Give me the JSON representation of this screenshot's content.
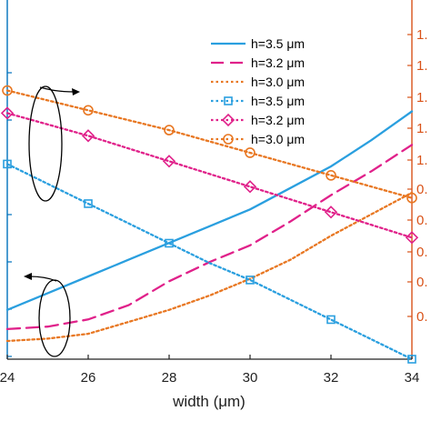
{
  "chart_data": {
    "type": "line",
    "xlabel": "width (μm)",
    "xlim": [
      24,
      34
    ],
    "x_ticks": [
      "24",
      "26",
      "28",
      "30",
      "32",
      "34"
    ],
    "left_axis_color": "#0072bd",
    "right_axis_color": "#d95319",
    "right_tick_labels": [
      "1.",
      "1.",
      "1.",
      "1.",
      "1.",
      "0.",
      "0.",
      "0.",
      "0.",
      "0."
    ],
    "legend_labels": [
      "h=3.5 μm",
      "h=3.2 μm",
      "h=3.0 μm",
      "h=3.5 μm",
      "h=3.2 μm",
      "h=3.0 μm"
    ],
    "legend_placement": "top-right",
    "grid": false,
    "series": [
      {
        "axis": "left",
        "style": "solid",
        "color": "#2a9fdf",
        "x": [
          24,
          25,
          26,
          27,
          28,
          29,
          30,
          31,
          32,
          33,
          34
        ],
        "y": [
          0.13,
          0.2,
          0.27,
          0.34,
          0.41,
          0.48,
          0.55,
          0.64,
          0.73,
          0.84,
          0.96
        ]
      },
      {
        "axis": "left",
        "style": "dashed",
        "color": "#e0218a",
        "x": [
          24,
          25,
          26,
          27,
          28,
          29,
          30,
          31,
          32,
          33,
          34
        ],
        "y": [
          0.05,
          0.06,
          0.09,
          0.15,
          0.25,
          0.33,
          0.4,
          0.5,
          0.61,
          0.71,
          0.82
        ]
      },
      {
        "axis": "left",
        "style": "dotted",
        "color": "#e87722",
        "x": [
          24,
          25,
          26,
          27,
          28,
          29,
          30,
          31,
          32,
          33,
          34
        ],
        "y": [
          0.0,
          0.01,
          0.03,
          0.08,
          0.13,
          0.19,
          0.26,
          0.34,
          0.44,
          0.53,
          0.62
        ]
      },
      {
        "axis": "right",
        "style": "dotted",
        "marker": "square",
        "color": "#2a9fdf",
        "x": [
          24,
          25,
          26,
          27,
          28,
          29,
          30,
          31,
          32,
          33,
          34
        ],
        "y": [
          0.83,
          0.76,
          0.69,
          0.62,
          0.55,
          0.48,
          0.42,
          0.35,
          0.28,
          0.21,
          0.14
        ]
      },
      {
        "axis": "right",
        "style": "dotted",
        "marker": "diamond",
        "color": "#e0218a",
        "x": [
          24,
          26,
          28,
          30,
          32,
          34
        ],
        "y": [
          1.01,
          0.93,
          0.84,
          0.75,
          0.66,
          0.57
        ]
      },
      {
        "axis": "right",
        "style": "dotted",
        "marker": "circle",
        "color": "#e87722",
        "x": [
          24,
          26,
          28,
          30,
          32,
          34
        ],
        "y": [
          1.09,
          1.02,
          0.95,
          0.87,
          0.79,
          0.71
        ]
      }
    ],
    "annotations": [
      "ellipse-arrow-right",
      "ellipse-arrow-left"
    ]
  }
}
